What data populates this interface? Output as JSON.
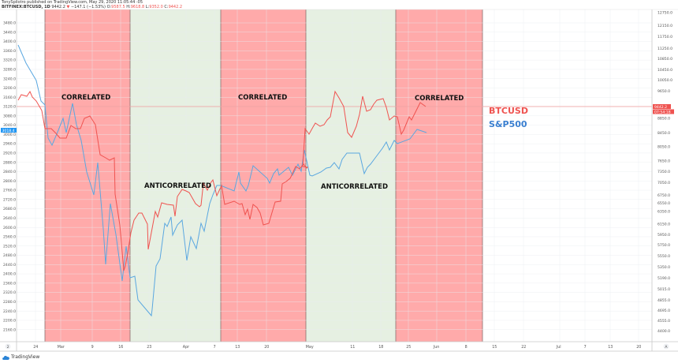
{
  "header": {
    "publisher_line": "TonySpilotro published on TradingView.com, May 29, 2020 11:05:44 -05",
    "symbol": "BITFINEX:BTCUSD, 1D",
    "last": "9442.2",
    "change": "−147.1 (−1.53%)",
    "open_label": "O:",
    "open": "9587.5",
    "high_label": "H:",
    "high": "9618.8",
    "low_label": "L:",
    "low": "9352.0",
    "close_label": "C:",
    "close": "9442.2"
  },
  "footer": {
    "brand": "TradingView",
    "left_scale_button": "2",
    "right_scale_button": "A"
  },
  "colors": {
    "btc": "#ef5350",
    "spx": "#5aa7e0",
    "correlated_band": "#ffaaaa",
    "anticorrelated_band": "#e6f0e2"
  },
  "price_labels": {
    "left_current": "3018.4",
    "right_current": "9442.2",
    "right_countdown": "07:54:18"
  },
  "legend": {
    "btc": "BTCUSD",
    "spx": "S&P500"
  },
  "annotations": [
    {
      "label": "CORRELATED"
    },
    {
      "label": "ANTICORRELATED"
    },
    {
      "label": "CORRELATED"
    },
    {
      "label": "ANTICORRELATED"
    },
    {
      "label": "CORRELATED"
    }
  ],
  "chart_data": {
    "type": "line",
    "title": "BITFINEX:BTCUSD, 1D vs S&P500",
    "xlabel": "",
    "ylabel": "",
    "x_ticks": [
      "24",
      "Mar",
      "9",
      "16",
      "23",
      "Apr",
      "7",
      "13",
      "20",
      "May",
      "11",
      "18",
      "25",
      "Jun",
      "8",
      "15",
      "22",
      "Jul",
      "7",
      "13",
      "20"
    ],
    "left_axis": {
      "series": "S&P500",
      "ticks": [
        3480,
        3440,
        3400,
        3360,
        3320,
        3280,
        3240,
        3200,
        3160,
        3120,
        3080,
        3040,
        3000,
        2960,
        2920,
        2880,
        2840,
        2800,
        2760,
        2720,
        2680,
        2640,
        2600,
        2560,
        2520,
        2480,
        2440,
        2400,
        2360,
        2320,
        2280,
        2240,
        2200,
        2160
      ],
      "ylim": [
        3140,
        3500
      ]
    },
    "right_axis": {
      "series": "BTCUSD",
      "ticks": [
        12750,
        12150,
        11750,
        11250,
        10850,
        10450,
        10050,
        9650,
        8850,
        8450,
        8050,
        7650,
        7350,
        7050,
        6750,
        6550,
        6350,
        6150,
        5950,
        5750,
        5550,
        5350,
        5190,
        5015,
        4855,
        4695,
        4555,
        4400
      ],
      "log_scale": true
    },
    "grid": true,
    "legend_position": "right, inline labels",
    "regions": [
      {
        "label": "CORRELATED",
        "start": "Feb 27",
        "end": "Mar 18",
        "color": "red"
      },
      {
        "label": "ANTICORRELATED",
        "start": "Mar 18",
        "end": "Apr 8",
        "color": "green"
      },
      {
        "label": "CORRELATED",
        "start": "Apr 8",
        "end": "Apr 30",
        "color": "red"
      },
      {
        "label": "ANTICORRELATED",
        "start": "Apr 30",
        "end": "May 21",
        "color": "green"
      },
      {
        "label": "CORRELATED",
        "start": "May 21",
        "end": "Jun 10",
        "color": "red"
      }
    ],
    "series": [
      {
        "name": "S&P500",
        "color": "#5aa7e0",
        "approx_values": [
          3370,
          3230,
          3130,
          3120,
          2960,
          2950,
          3010,
          3090,
          3130,
          3030,
          2970,
          2880,
          2740,
          2480,
          2710,
          2530,
          2380,
          2400,
          2300,
          2340,
          2240,
          2200,
          2440,
          2460,
          2580,
          2520,
          2630,
          2490,
          2660,
          2760,
          2790,
          2780,
          2790,
          2850,
          2790,
          2800,
          2870,
          2840,
          2800,
          2830,
          2870,
          2950,
          2910,
          2870,
          2840,
          2860,
          2930,
          2960,
          2950,
          2960,
          3010,
          2990,
          3040,
          3030
        ]
      },
      {
        "name": "BTCUSD",
        "approx_values": [
          8900,
          9700,
          10200,
          9800,
          8700,
          8800,
          8600,
          8900,
          9100,
          9200,
          7900,
          7400,
          5000,
          5400,
          5800,
          6200,
          6700,
          6400,
          6800,
          6700,
          6900,
          7300,
          7200,
          6900,
          7200,
          7300,
          7100,
          6800,
          6900,
          7400,
          7500,
          7600,
          7600,
          7700,
          8800,
          9200,
          9000,
          9800,
          9600,
          8700,
          9900,
          9500,
          9300,
          9800,
          8900,
          9000,
          9200,
          9500,
          9700,
          9442
        ]
      }
    ]
  }
}
